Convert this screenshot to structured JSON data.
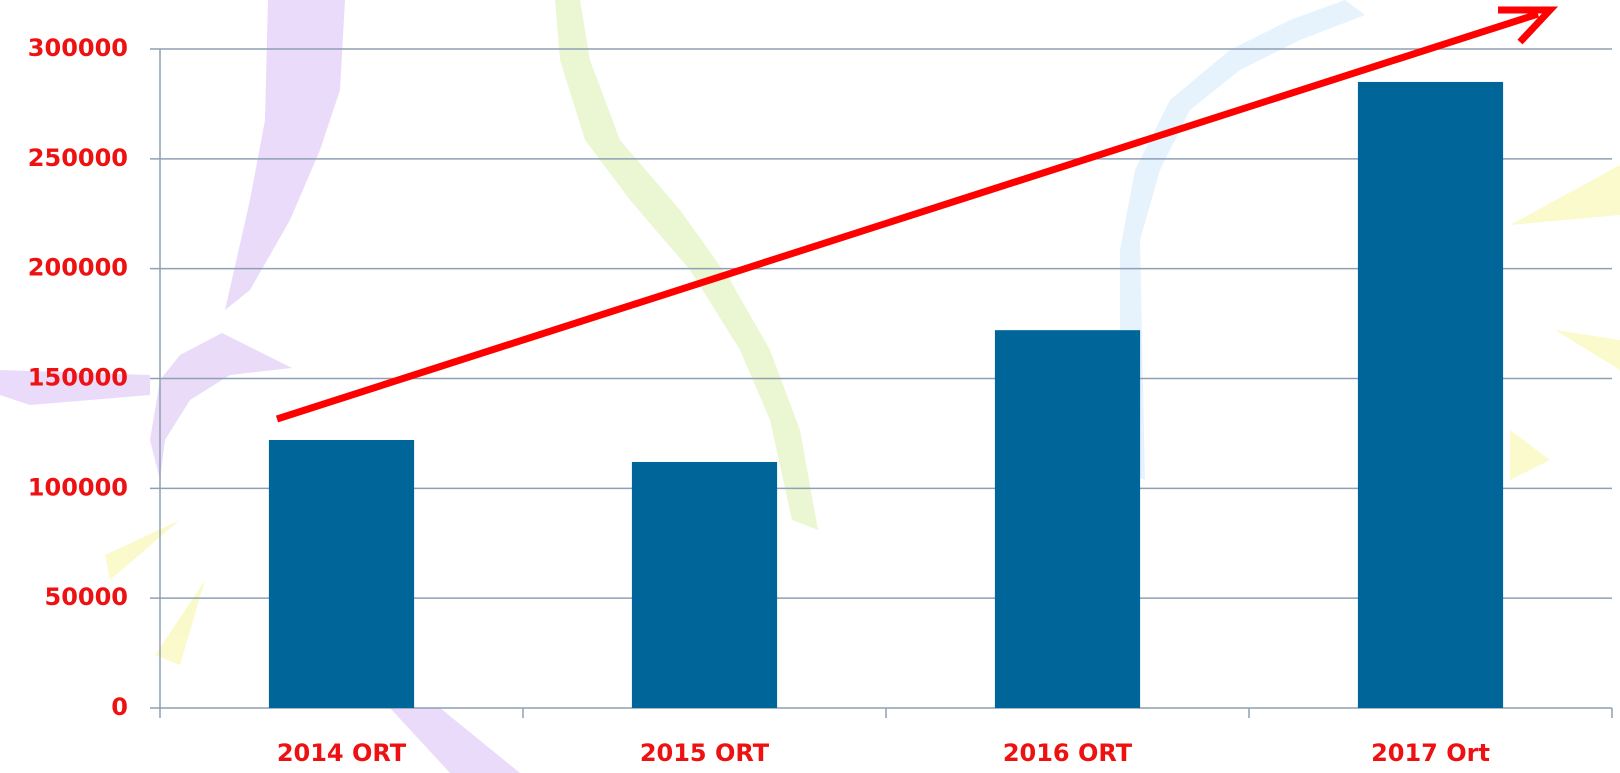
{
  "chart_data": {
    "type": "bar",
    "categories": [
      "2014 ORT",
      "2015 ORT",
      "2016 ORT",
      "2017 Ort"
    ],
    "values": [
      122000,
      112000,
      172000,
      285000
    ],
    "color": "#006699",
    "ylim": [
      0,
      300000
    ],
    "yticks": [
      0,
      50000,
      100000,
      150000,
      200000,
      250000,
      300000
    ],
    "grid": true
  }
}
